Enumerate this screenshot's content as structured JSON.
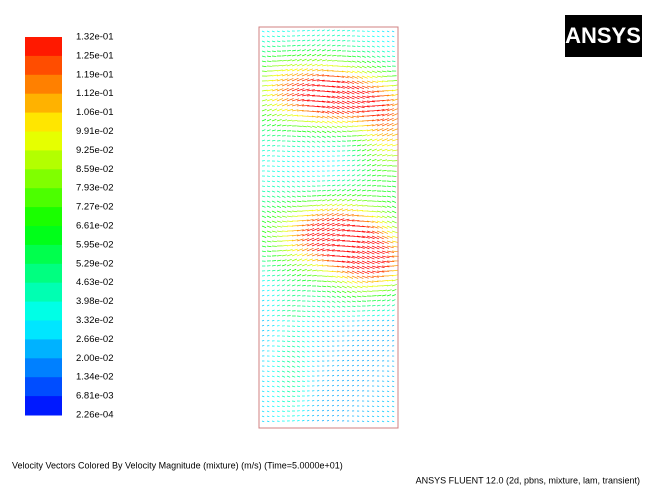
{
  "legend": {
    "labels": [
      "1.32e-01",
      "1.25e-01",
      "1.19e-01",
      "1.12e-01",
      "1.06e-01",
      "9.91e-02",
      "9.25e-02",
      "8.59e-02",
      "7.93e-02",
      "7.27e-02",
      "6.61e-02",
      "5.95e-02",
      "5.29e-02",
      "4.63e-02",
      "3.98e-02",
      "3.32e-02",
      "2.66e-02",
      "2.00e-02",
      "1.34e-02",
      "6.81e-03",
      "2.26e-04"
    ]
  },
  "logo": "ANSYS",
  "footer": {
    "line1": "Velocity Vectors Colored By Velocity Magnitude (mixture)  (m/s)  (Time=5.0000e+01)",
    "line2": "ANSYS FLUENT 12.0 (2d, pbns, mixture, lam, transient)"
  }
}
